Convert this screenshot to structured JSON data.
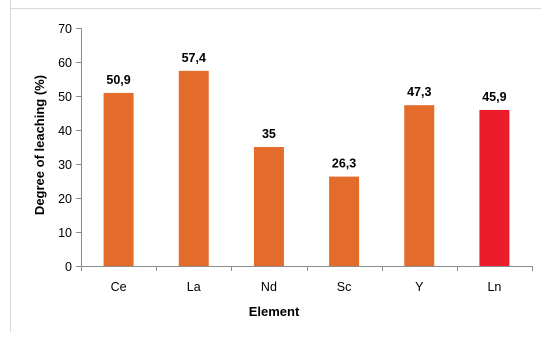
{
  "chart_data": {
    "type": "bar",
    "categories": [
      "Ce",
      "La",
      "Nd",
      "Sc",
      "Y",
      "Ln"
    ],
    "values": [
      50.9,
      57.4,
      35,
      26.3,
      47.3,
      45.9
    ],
    "data_labels": [
      "50,9",
      "57,4",
      "35",
      "26,3",
      "47,3",
      "45,9"
    ],
    "bar_colors": [
      "#e36c2a",
      "#e36c2a",
      "#e36c2a",
      "#e36c2a",
      "#e36c2a",
      "#ec1c2a"
    ],
    "xlabel": "Element",
    "ylabel": "Degree of leaching (%)",
    "ylim": [
      0,
      70
    ],
    "yticks": [
      0,
      10,
      20,
      30,
      40,
      50,
      60,
      70
    ],
    "grid": false,
    "legend": "none"
  }
}
